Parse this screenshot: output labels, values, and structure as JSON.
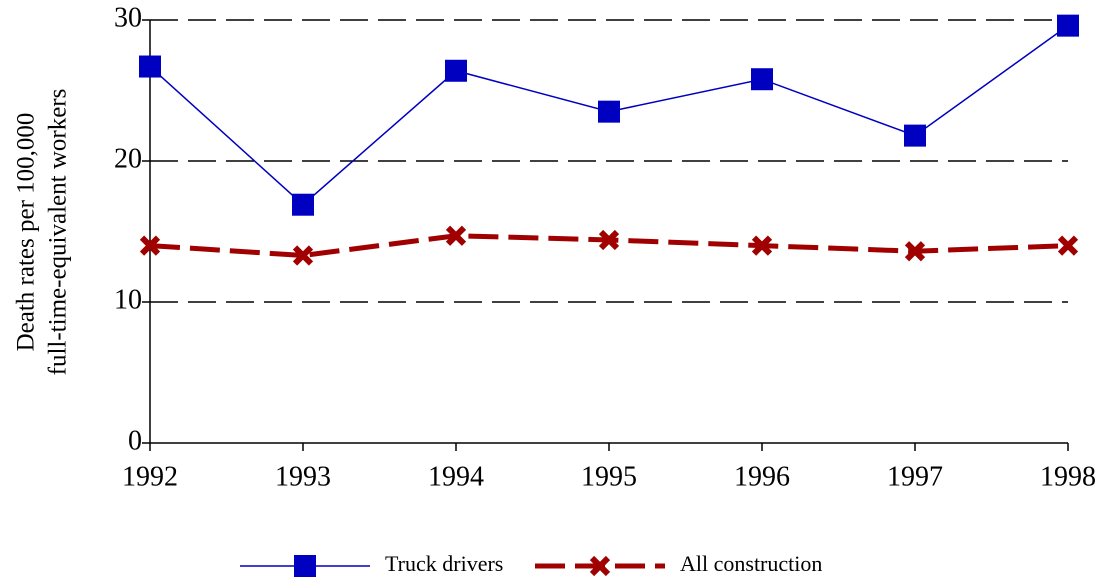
{
  "chart_data": {
    "type": "line",
    "ylabel": [
      "Death rates per 100,000",
      "full-time-equivalent workers"
    ],
    "x": [
      1992,
      1993,
      1994,
      1995,
      1996,
      1997,
      1998
    ],
    "xlim": [
      1992,
      1998
    ],
    "xticks": [
      1992,
      1993,
      1994,
      1995,
      1996,
      1997,
      1998
    ],
    "ylim": [
      0,
      30
    ],
    "yticks": [
      0,
      10,
      20,
      30
    ],
    "grid": true,
    "legend": "bottom",
    "series": [
      {
        "name": "Truck drivers",
        "color": "#0000c0",
        "marker": "square",
        "dashed": false,
        "values": [
          26.7,
          16.9,
          26.4,
          23.5,
          25.8,
          21.8,
          29.6
        ]
      },
      {
        "name": "All construction",
        "color": "#a00000",
        "marker": "x",
        "dashed": true,
        "values": [
          14.0,
          13.3,
          14.7,
          14.4,
          14.0,
          13.6,
          14.0
        ]
      }
    ]
  }
}
